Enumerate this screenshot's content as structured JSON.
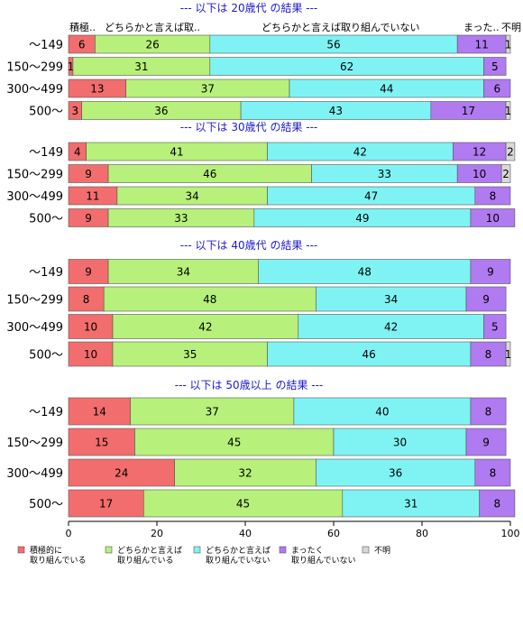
{
  "chart_data": {
    "type": "bar",
    "orientation": "horizontal",
    "stacked": true,
    "xlim": [
      0,
      100
    ],
    "xticks": [
      0,
      20,
      40,
      60,
      80,
      100
    ],
    "colors": [
      "#f26d6d",
      "#b7f07a",
      "#7ff3f3",
      "#b07af0",
      "#d9d9d9"
    ],
    "legend": [
      "積極的に\n取り組んでいる",
      "どちらかと言えば\n取り組んでいる",
      "どちらかと言えば\n取り組んでいない",
      "まったく\n取り組んでいない",
      "不明"
    ],
    "header_labels": [
      "積極..",
      "どちらかと言えば取..",
      "どちらかと言えば取り組んでいない",
      "まった..",
      "不明"
    ],
    "categories": [
      "～149",
      "150～299",
      "300～499",
      "500～"
    ],
    "groups": [
      {
        "title": "--- 以下は 20歳代 の結果 ---",
        "rows": [
          [
            6,
            26,
            56,
            11,
            1
          ],
          [
            1,
            31,
            62,
            5,
            0
          ],
          [
            13,
            37,
            44,
            6,
            0
          ],
          [
            3,
            36,
            43,
            17,
            1
          ]
        ]
      },
      {
        "title": "--- 以下は 30歳代 の結果 ---",
        "rows": [
          [
            4,
            41,
            42,
            12,
            2
          ],
          [
            9,
            46,
            33,
            10,
            2
          ],
          [
            11,
            34,
            47,
            8,
            0
          ],
          [
            9,
            33,
            49,
            10,
            0
          ]
        ]
      },
      {
        "title": "--- 以下は 40歳代 の結果 ---",
        "rows": [
          [
            9,
            34,
            48,
            9,
            0
          ],
          [
            8,
            48,
            34,
            9,
            0
          ],
          [
            10,
            42,
            42,
            5,
            0
          ],
          [
            10,
            35,
            46,
            8,
            1
          ]
        ]
      },
      {
        "title": "--- 以下は 50歳以上 の結果 ---",
        "rows": [
          [
            14,
            37,
            40,
            8,
            0
          ],
          [
            15,
            45,
            30,
            9,
            0
          ],
          [
            24,
            32,
            36,
            8,
            0
          ],
          [
            17,
            45,
            31,
            8,
            0
          ]
        ]
      }
    ]
  }
}
